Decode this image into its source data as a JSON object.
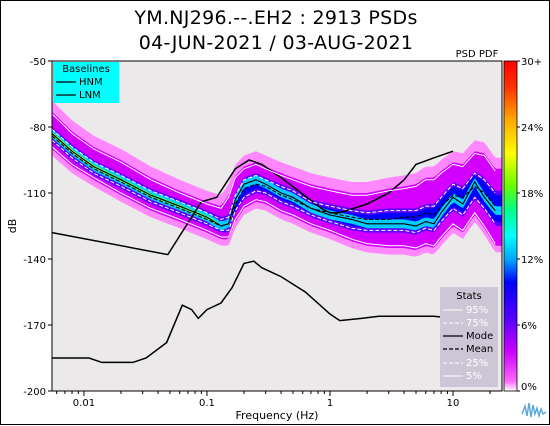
{
  "title": {
    "line1": "YM.NJ296.--.EH2 : 2913 PSDs",
    "line2": "04-JUN-2021 / 03-AUG-2021"
  },
  "chart_data": {
    "type": "heatmap",
    "xlabel": "Frequency (Hz)",
    "ylabel": "dB",
    "xscale": "log",
    "xlim": [
      0.0055,
      25
    ],
    "ylim": [
      -200,
      -50
    ],
    "xticks": [
      {
        "v": 0.01,
        "label": "0.01"
      },
      {
        "v": 0.1,
        "label": "0.1"
      },
      {
        "v": 1,
        "label": "1"
      },
      {
        "v": 10,
        "label": "10"
      }
    ],
    "yticks": [
      {
        "v": -50,
        "label": "-50"
      },
      {
        "v": -80,
        "label": "-80"
      },
      {
        "v": -110,
        "label": "-110"
      },
      {
        "v": -140,
        "label": "-140"
      },
      {
        "v": -170,
        "label": "-170"
      },
      {
        "v": -200,
        "label": "-200"
      }
    ],
    "colorbar": {
      "title": "PSD PDF",
      "ticks": [
        {
          "v": 0,
          "label": "0%"
        },
        {
          "v": 6,
          "label": "6%"
        },
        {
          "v": 12,
          "label": "12%"
        },
        {
          "v": 18,
          "label": "18%"
        },
        {
          "v": 24,
          "label": "24%"
        },
        {
          "v": 30,
          "label": "30+"
        }
      ],
      "range": [
        0,
        30
      ]
    },
    "baselines_legend": {
      "title": "Baselines",
      "entries": [
        "HNM",
        "LNM"
      ]
    },
    "stats_legend": {
      "title": "Stats",
      "entries": [
        "95%",
        "75%",
        "Mode",
        "Mean",
        "25%",
        "5%"
      ]
    },
    "series": [
      {
        "name": "HNM",
        "x": [
          0.0055,
          0.048,
          0.09,
          0.12,
          0.17,
          0.22,
          0.28,
          0.4,
          0.65,
          0.85,
          1.0,
          1.2,
          2.0,
          3.0,
          4.0,
          5.0,
          7.0,
          10.0
        ],
        "y": [
          -128,
          -138,
          -114,
          -112,
          -99,
          -95,
          -97,
          -103,
          -112,
          -117,
          -119,
          -119,
          -115,
          -110,
          -104,
          -97,
          -94,
          -91
        ]
      },
      {
        "name": "LNM",
        "x": [
          0.0055,
          0.011,
          0.014,
          0.025,
          0.032,
          0.047,
          0.063,
          0.075,
          0.085,
          0.1,
          0.13,
          0.16,
          0.2,
          0.24,
          0.28,
          0.4,
          0.63,
          1.0,
          1.2,
          1.8,
          2.5,
          3.5,
          5.0,
          7.0,
          10.0
        ],
        "y": [
          -185,
          -185,
          -187,
          -187,
          -185,
          -178,
          -161,
          -163,
          -167,
          -163,
          -160,
          -153,
          -142,
          -141,
          -144,
          -148,
          -155,
          -165,
          -168,
          -167,
          -166,
          -166,
          -166,
          -166,
          -167
        ]
      },
      {
        "name": "Mode",
        "x": [
          0.0055,
          0.008,
          0.012,
          0.02,
          0.035,
          0.06,
          0.1,
          0.13,
          0.15,
          0.17,
          0.2,
          0.25,
          0.3,
          0.4,
          0.5,
          0.7,
          1.0,
          1.5,
          2.0,
          3.0,
          4.0,
          5.0,
          6.0,
          7.0,
          8.0,
          10.0,
          12.0,
          15.0,
          18.0,
          22.0
        ],
        "y": [
          -83,
          -91,
          -98,
          -104,
          -111,
          -116,
          -121,
          -125,
          -124,
          -113,
          -106,
          -104,
          -106,
          -110,
          -112,
          -117,
          -120,
          -122,
          -124,
          -124,
          -124,
          -125,
          -123,
          -124,
          -119,
          -112,
          -115,
          -105,
          -112,
          -118
        ]
      },
      {
        "name": "Mean",
        "x": [
          0.0055,
          0.008,
          0.012,
          0.02,
          0.035,
          0.06,
          0.1,
          0.13,
          0.15,
          0.17,
          0.2,
          0.25,
          0.3,
          0.4,
          0.5,
          0.7,
          1.0,
          1.5,
          2.0,
          3.0,
          4.0,
          5.0,
          6.0,
          7.0,
          8.0,
          10.0,
          12.0,
          15.0,
          18.0,
          22.0
        ],
        "y": [
          -84,
          -92,
          -99,
          -105,
          -112,
          -117,
          -122,
          -125,
          -124,
          -115,
          -108,
          -106,
          -107,
          -111,
          -113,
          -117,
          -119,
          -121,
          -122,
          -122,
          -121,
          -121,
          -119,
          -120,
          -116,
          -111,
          -112,
          -107,
          -110,
          -116
        ]
      },
      {
        "name": "95%",
        "x": [
          0.0055,
          0.008,
          0.012,
          0.02,
          0.035,
          0.06,
          0.1,
          0.13,
          0.15,
          0.17,
          0.2,
          0.25,
          0.3,
          0.4,
          0.5,
          0.7,
          1.0,
          1.5,
          2.0,
          3.0,
          4.0,
          5.0,
          6.0,
          7.0,
          8.0,
          10.0,
          12.0,
          15.0,
          18.0,
          22.0
        ],
        "y": [
          -74,
          -83,
          -90,
          -96,
          -104,
          -110,
          -115,
          -117,
          -112,
          -103,
          -99,
          -97,
          -99,
          -102,
          -104,
          -107,
          -109,
          -111,
          -111,
          -109,
          -108,
          -107,
          -104,
          -104,
          -101,
          -97,
          -98,
          -92,
          -93,
          -100
        ]
      },
      {
        "name": "75%",
        "x": [
          0.0055,
          0.008,
          0.012,
          0.02,
          0.035,
          0.06,
          0.1,
          0.13,
          0.15,
          0.17,
          0.2,
          0.25,
          0.3,
          0.4,
          0.5,
          0.7,
          1.0,
          1.5,
          2.0,
          3.0,
          4.0,
          5.0,
          6.0,
          7.0,
          8.0,
          10.0,
          12.0,
          15.0,
          18.0,
          22.0
        ],
        "y": [
          -81,
          -89,
          -96,
          -102,
          -109,
          -114,
          -119,
          -122,
          -121,
          -111,
          -104,
          -102,
          -104,
          -107,
          -109,
          -114,
          -116,
          -118,
          -119,
          -118,
          -118,
          -118,
          -116,
          -116,
          -112,
          -106,
          -108,
          -101,
          -104,
          -110
        ]
      },
      {
        "name": "25%",
        "x": [
          0.0055,
          0.008,
          0.012,
          0.02,
          0.035,
          0.06,
          0.1,
          0.13,
          0.15,
          0.17,
          0.2,
          0.25,
          0.3,
          0.4,
          0.5,
          0.7,
          1.0,
          1.5,
          2.0,
          3.0,
          4.0,
          5.0,
          6.0,
          7.0,
          8.0,
          10.0,
          12.0,
          15.0,
          18.0,
          22.0
        ],
        "y": [
          -86,
          -94,
          -101,
          -107,
          -114,
          -119,
          -124,
          -127,
          -127,
          -118,
          -112,
          -109,
          -110,
          -114,
          -116,
          -120,
          -123,
          -126,
          -127,
          -127,
          -127,
          -128,
          -126,
          -127,
          -123,
          -117,
          -120,
          -112,
          -117,
          -124
        ]
      },
      {
        "name": "5%",
        "x": [
          0.0055,
          0.008,
          0.012,
          0.02,
          0.035,
          0.06,
          0.1,
          0.13,
          0.15,
          0.17,
          0.2,
          0.25,
          0.3,
          0.4,
          0.5,
          0.7,
          1.0,
          1.5,
          2.0,
          3.0,
          4.0,
          5.0,
          6.0,
          7.0,
          8.0,
          10.0,
          12.0,
          15.0,
          18.0,
          22.0
        ],
        "y": [
          -89,
          -97,
          -103,
          -110,
          -117,
          -122,
          -127,
          -130,
          -130,
          -122,
          -116,
          -113,
          -114,
          -118,
          -120,
          -124,
          -127,
          -131,
          -133,
          -134,
          -134,
          -135,
          -133,
          -134,
          -130,
          -124,
          -127,
          -119,
          -125,
          -133
        ]
      }
    ]
  }
}
